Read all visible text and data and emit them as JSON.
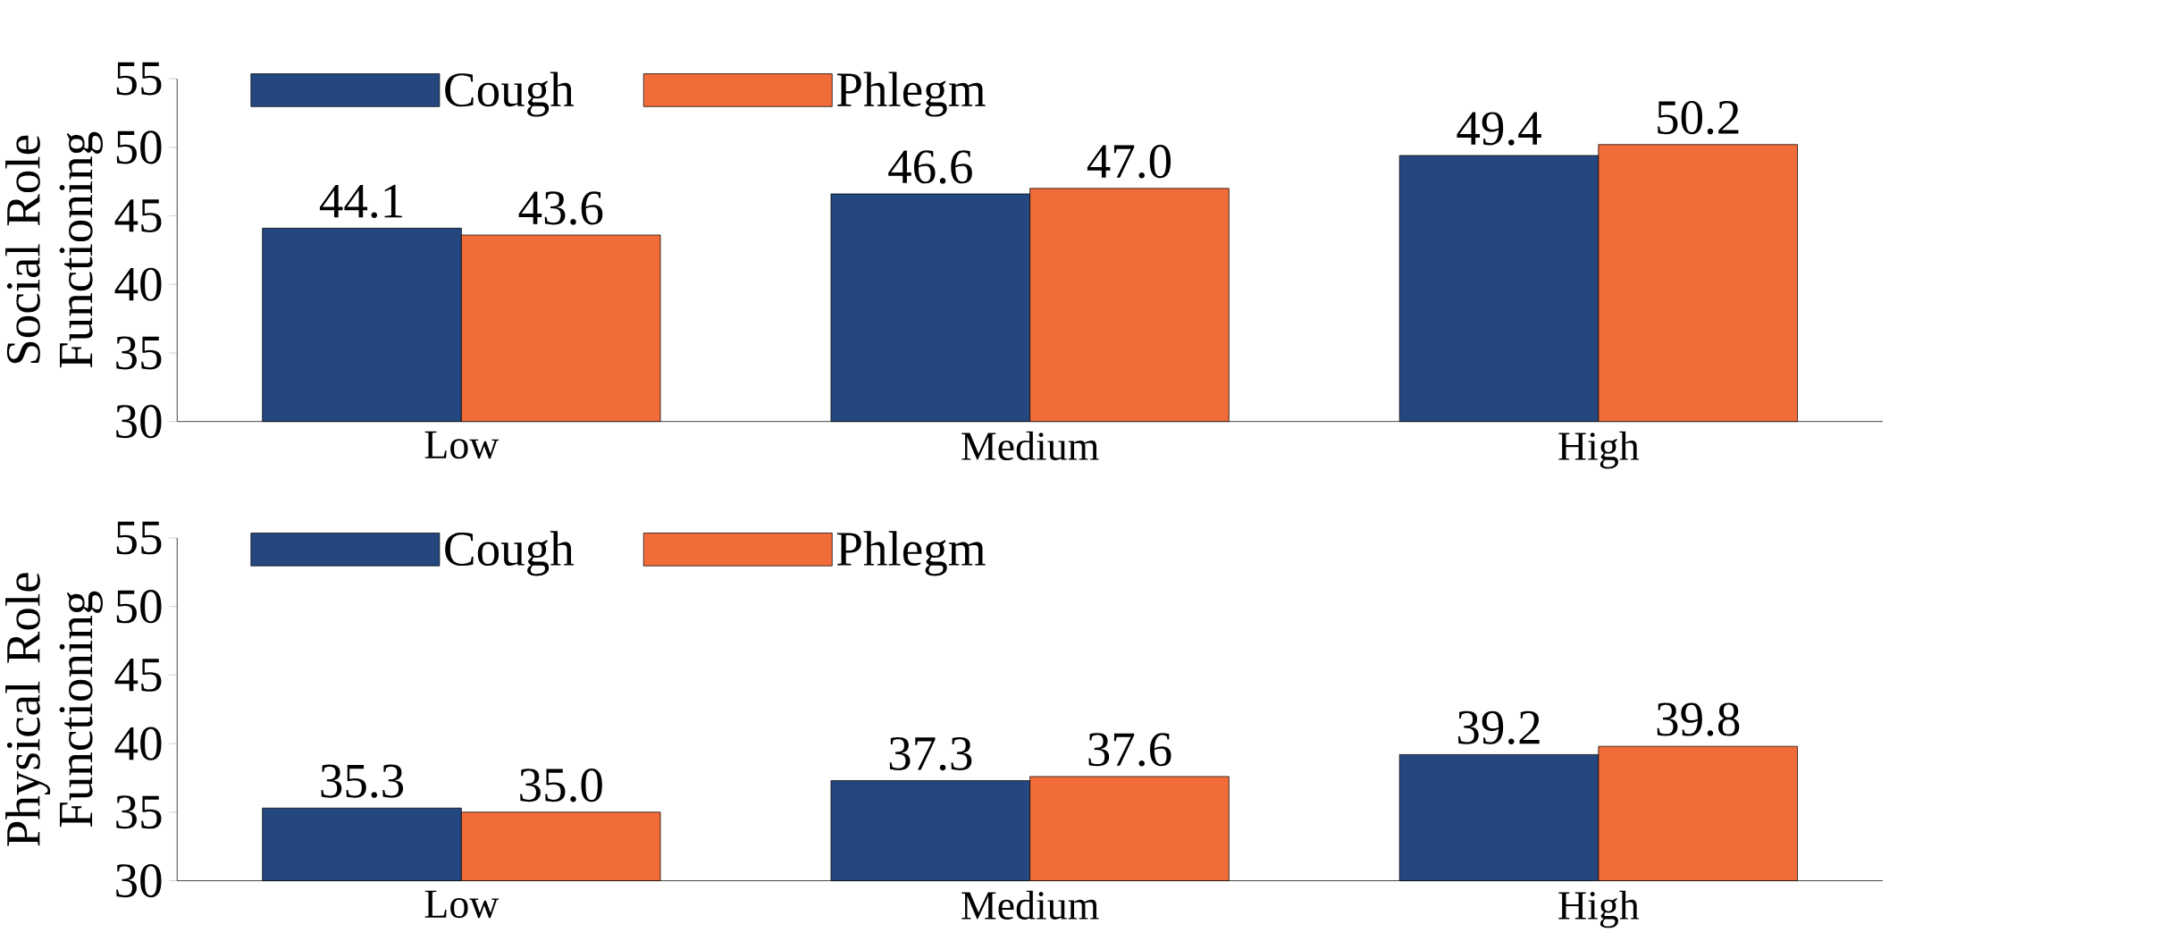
{
  "chart_data": [
    {
      "type": "bar",
      "ylabel": "Social Role Functioning",
      "categories": [
        "Low",
        "Medium",
        "High"
      ],
      "ylim": [
        30,
        55
      ],
      "yticks": [
        30,
        35,
        40,
        45,
        50,
        55
      ],
      "legend": "top left",
      "series": [
        {
          "name": "Cough",
          "color": "#24477f",
          "values": [
            44.1,
            46.6,
            49.4
          ],
          "value_labels": [
            "44.1",
            "46.6",
            "49.4"
          ]
        },
        {
          "name": "Phlegm",
          "color": "#f26c3a",
          "values": [
            43.6,
            47.0,
            50.2
          ],
          "value_labels": [
            "43.6",
            "47.0",
            "50.2"
          ]
        }
      ]
    },
    {
      "type": "bar",
      "ylabel": "Physical Role Functioning",
      "categories": [
        "Low",
        "Medium",
        "High"
      ],
      "ylim": [
        30,
        55
      ],
      "yticks": [
        30,
        35,
        40,
        45,
        50,
        55
      ],
      "legend": "top left",
      "series": [
        {
          "name": "Cough",
          "color": "#24477f",
          "values": [
            35.3,
            37.3,
            39.2
          ],
          "value_labels": [
            "35.3",
            "37.3",
            "39.2"
          ]
        },
        {
          "name": "Phlegm",
          "color": "#f26c3a",
          "values": [
            35.0,
            37.6,
            39.8
          ],
          "value_labels": [
            "35.0",
            "37.6",
            "39.8"
          ]
        }
      ]
    }
  ]
}
